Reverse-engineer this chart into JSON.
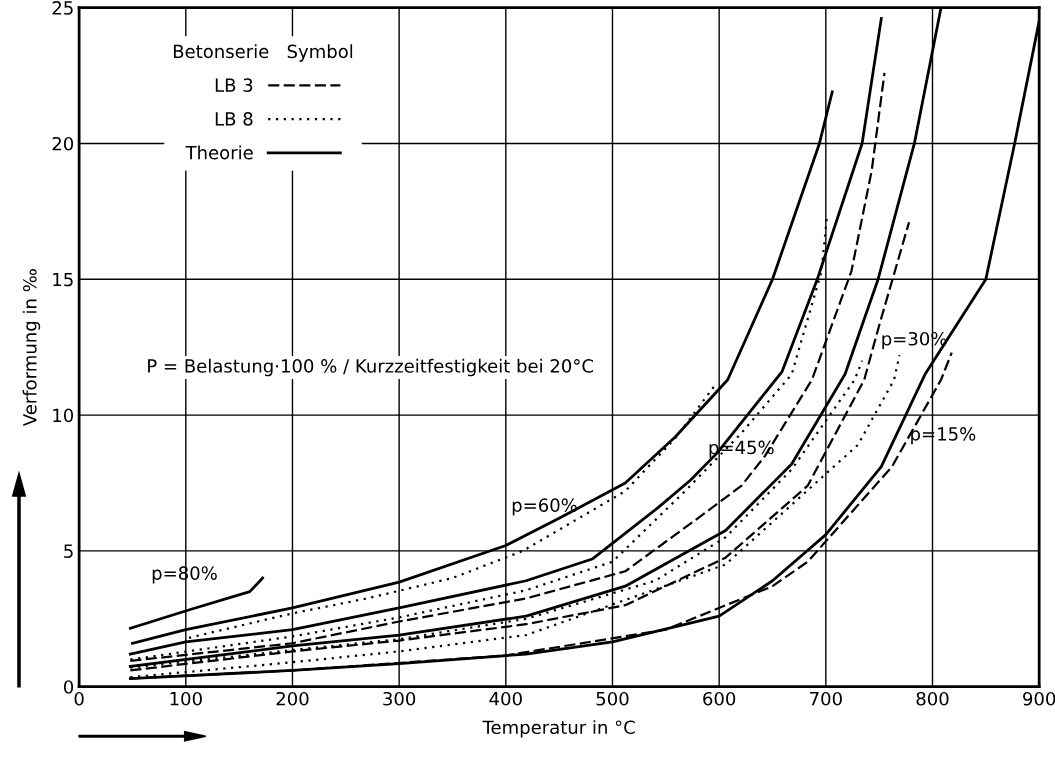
{
  "chart_data": {
    "type": "line",
    "xlabel": "Temperatur in °C",
    "ylabel": "Verformung in ‰",
    "legend_title": "Betonserie   Symbol",
    "legend": "top left",
    "grid": true,
    "xlim": [
      0,
      900
    ],
    "xticks": [
      0,
      100,
      200,
      300,
      400,
      500,
      600,
      700,
      800,
      900
    ],
    "ylim": [
      0,
      25
    ],
    "yticks": [
      0,
      5,
      10,
      15,
      20,
      25
    ],
    "series": [
      {
        "name": "LB 3",
        "color": "#000000",
        "line_style": "dashed",
        "x": [
          48,
          200,
          300,
          419,
          512,
          580,
          621,
          643,
          687,
          724,
          743,
          755
        ],
        "values": [
          0.95,
          1.6,
          2.4,
          3.25,
          4.25,
          6.2,
          7.4,
          8.5,
          11.3,
          15.3,
          19,
          22.6
        ]
      },
      {
        "name": "LB 8",
        "color": "#000000",
        "line_style": "dotted",
        "x": [
          103,
          200,
          270,
          350,
          416,
          512,
          560,
          598
        ],
        "values": [
          1.8,
          2.7,
          3.25,
          4.0,
          5.0,
          7.2,
          9.2,
          11.2
        ]
      },
      {
        "name": "Theorie",
        "color": "#000000",
        "line_style": "solid",
        "x": [
          48,
          105,
          160,
          172
        ],
        "values": [
          2.15,
          2.85,
          3.5,
          4.0
        ]
      },
      {
        "color": "#000000",
        "line_style": "solid",
        "x": [
          50,
          100,
          200,
          300,
          400,
          450,
          512,
          559,
          608,
          650,
          694,
          706
        ],
        "values": [
          1.6,
          2.1,
          2.9,
          3.85,
          5.2,
          6.2,
          7.5,
          9.2,
          11.3,
          15,
          20,
          21.9
        ]
      },
      {
        "color": "#000000",
        "line_style": "solid",
        "x": [
          48,
          100,
          200,
          300,
          419,
          481,
          543,
          573,
          598,
          659,
          692,
          734,
          752
        ],
        "values": [
          1.2,
          1.65,
          2.1,
          2.9,
          3.9,
          4.7,
          6.6,
          7.6,
          8.6,
          11.6,
          15,
          20,
          24.6
        ]
      },
      {
        "color": "#000000",
        "line_style": "dotted",
        "x": [
          48,
          200,
          300,
          419,
          500,
          568,
          620,
          668,
          696,
          701
        ],
        "values": [
          1.0,
          1.85,
          2.55,
          3.55,
          4.6,
          7.2,
          9.3,
          11.5,
          15.3,
          17.3
        ]
      },
      {
        "color": "#000000",
        "line_style": "solid",
        "x": [
          48,
          200,
          300,
          419,
          512,
          606,
          668,
          718,
          749,
          783,
          808
        ],
        "values": [
          0.75,
          1.5,
          1.9,
          2.6,
          3.7,
          5.75,
          8.2,
          11.5,
          15,
          20,
          25
        ]
      },
      {
        "color": "#000000",
        "line_style": "dashed",
        "x": [
          48,
          200,
          300,
          419,
          512,
          606,
          683,
          736,
          750,
          778
        ],
        "values": [
          0.6,
          1.3,
          1.7,
          2.3,
          3.0,
          4.75,
          7.4,
          11.3,
          13.3,
          17.1
        ]
      },
      {
        "color": "#000000",
        "line_style": "dotted",
        "x": [
          48,
          200,
          300,
          419,
          540,
          606,
          668,
          727,
          734
        ],
        "values": [
          0.7,
          1.35,
          1.75,
          2.5,
          3.9,
          5.5,
          8.0,
          11.3,
          12.0
        ]
      },
      {
        "color": "#000000",
        "line_style": "dotted",
        "x": [
          48,
          200,
          300,
          419,
          606,
          699,
          730,
          764,
          769
        ],
        "values": [
          0.35,
          0.9,
          1.3,
          1.9,
          4.5,
          7.8,
          8.9,
          11.3,
          12.2
        ]
      },
      {
        "color": "#000000",
        "line_style": "solid",
        "x": [
          48,
          200,
          300,
          419,
          500,
          600,
          650,
          700,
          752,
          793,
          850,
          877,
          900
        ],
        "values": [
          0.3,
          0.6,
          0.85,
          1.2,
          1.65,
          2.6,
          3.9,
          5.6,
          8.1,
          11.5,
          15,
          20,
          24.5
        ]
      },
      {
        "color": "#000000",
        "line_style": "dashed",
        "x": [
          48,
          200,
          400,
          550,
          650,
          683,
          762,
          808,
          818
        ],
        "values": [
          0.3,
          0.6,
          1.15,
          2.1,
          3.7,
          4.6,
          8.1,
          11.3,
          12.3
        ]
      }
    ],
    "annotations": [
      "p=80%",
      "p=60%",
      "p=45%",
      "p=30%",
      "p=15%",
      "P = Belastung·100 % / Kurzzeitfestigkeit bei 20°C"
    ]
  }
}
